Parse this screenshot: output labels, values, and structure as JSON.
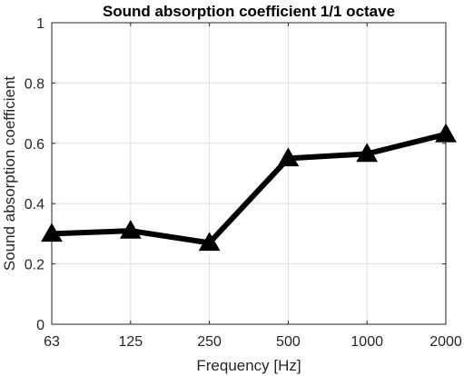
{
  "chart_data": {
    "type": "line",
    "title": "Sound absorption coefficient 1/1 octave",
    "xlabel": "Frequency [Hz]",
    "ylabel": "Sound absorption coefficient",
    "categories": [
      "63",
      "125",
      "250",
      "500",
      "1000",
      "2000"
    ],
    "series": [
      {
        "values": [
          0.3,
          0.31,
          0.27,
          0.55,
          0.565,
          0.63
        ]
      }
    ],
    "ylim": [
      0,
      1
    ],
    "yticks": [
      "0",
      "0.2",
      "0.4",
      "0.6",
      "0.8",
      "1"
    ],
    "grid": true,
    "marker": "triangle",
    "line_color": "#000000"
  }
}
